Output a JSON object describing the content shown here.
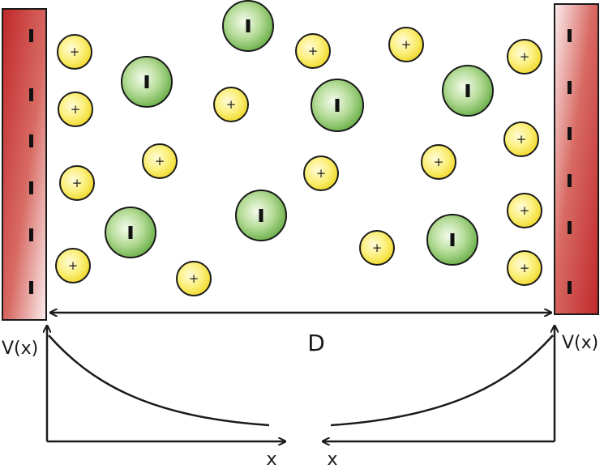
{
  "labels": {
    "distance": "D",
    "left_potential": "V(x)",
    "right_potential": "V(x)",
    "left_axis_x": "x",
    "right_axis_x": "x"
  },
  "signs": {
    "cation": "+"
  },
  "colors": {
    "electrode_dark": "#c0282a",
    "electrode_light": "#fbeeee",
    "cation_fill": "#f5e64a",
    "anion_fill": "#66b043",
    "outline": "#1a1a1a"
  },
  "icons": {
    "cation": "plus-ion-icon",
    "anion": "minus-ion-icon",
    "electrode": "charged-plate-icon"
  }
}
